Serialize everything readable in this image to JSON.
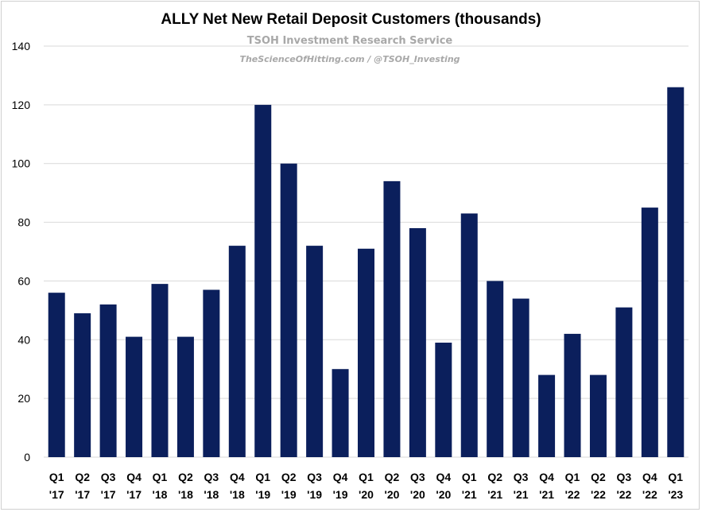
{
  "chart_data": {
    "type": "bar",
    "title": "ALLY Net New Retail Deposit Customers (thousands)",
    "watermark_line1": "TSOH Investment Research Service",
    "watermark_line2": "TheScienceOfHitting.com / @TSOH_Investing",
    "categories": [
      [
        "Q1",
        "'17"
      ],
      [
        "Q2",
        "'17"
      ],
      [
        "Q3",
        "'17"
      ],
      [
        "Q4",
        "'17"
      ],
      [
        "Q1",
        "'18"
      ],
      [
        "Q2",
        "'18"
      ],
      [
        "Q3",
        "'18"
      ],
      [
        "Q4",
        "'18"
      ],
      [
        "Q1",
        "'19"
      ],
      [
        "Q2",
        "'19"
      ],
      [
        "Q3",
        "'19"
      ],
      [
        "Q4",
        "'19"
      ],
      [
        "Q1",
        "'20"
      ],
      [
        "Q2",
        "'20"
      ],
      [
        "Q3",
        "'20"
      ],
      [
        "Q4",
        "'20"
      ],
      [
        "Q1",
        "'21"
      ],
      [
        "Q2",
        "'21"
      ],
      [
        "Q3",
        "'21"
      ],
      [
        "Q4",
        "'21"
      ],
      [
        "Q1",
        "'22"
      ],
      [
        "Q2",
        "'22"
      ],
      [
        "Q3",
        "'22"
      ],
      [
        "Q4",
        "'22"
      ],
      [
        "Q1",
        "'23"
      ]
    ],
    "values": [
      56,
      49,
      52,
      41,
      59,
      41,
      57,
      72,
      120,
      100,
      72,
      30,
      71,
      94,
      78,
      39,
      83,
      60,
      54,
      28,
      42,
      28,
      51,
      85,
      126
    ],
    "ylim": [
      0,
      140
    ],
    "yticks": [
      0,
      20,
      40,
      60,
      80,
      100,
      120,
      140
    ],
    "grid": true,
    "bar_color": "#0b1f5c",
    "grid_color": "#d9d9d9"
  }
}
